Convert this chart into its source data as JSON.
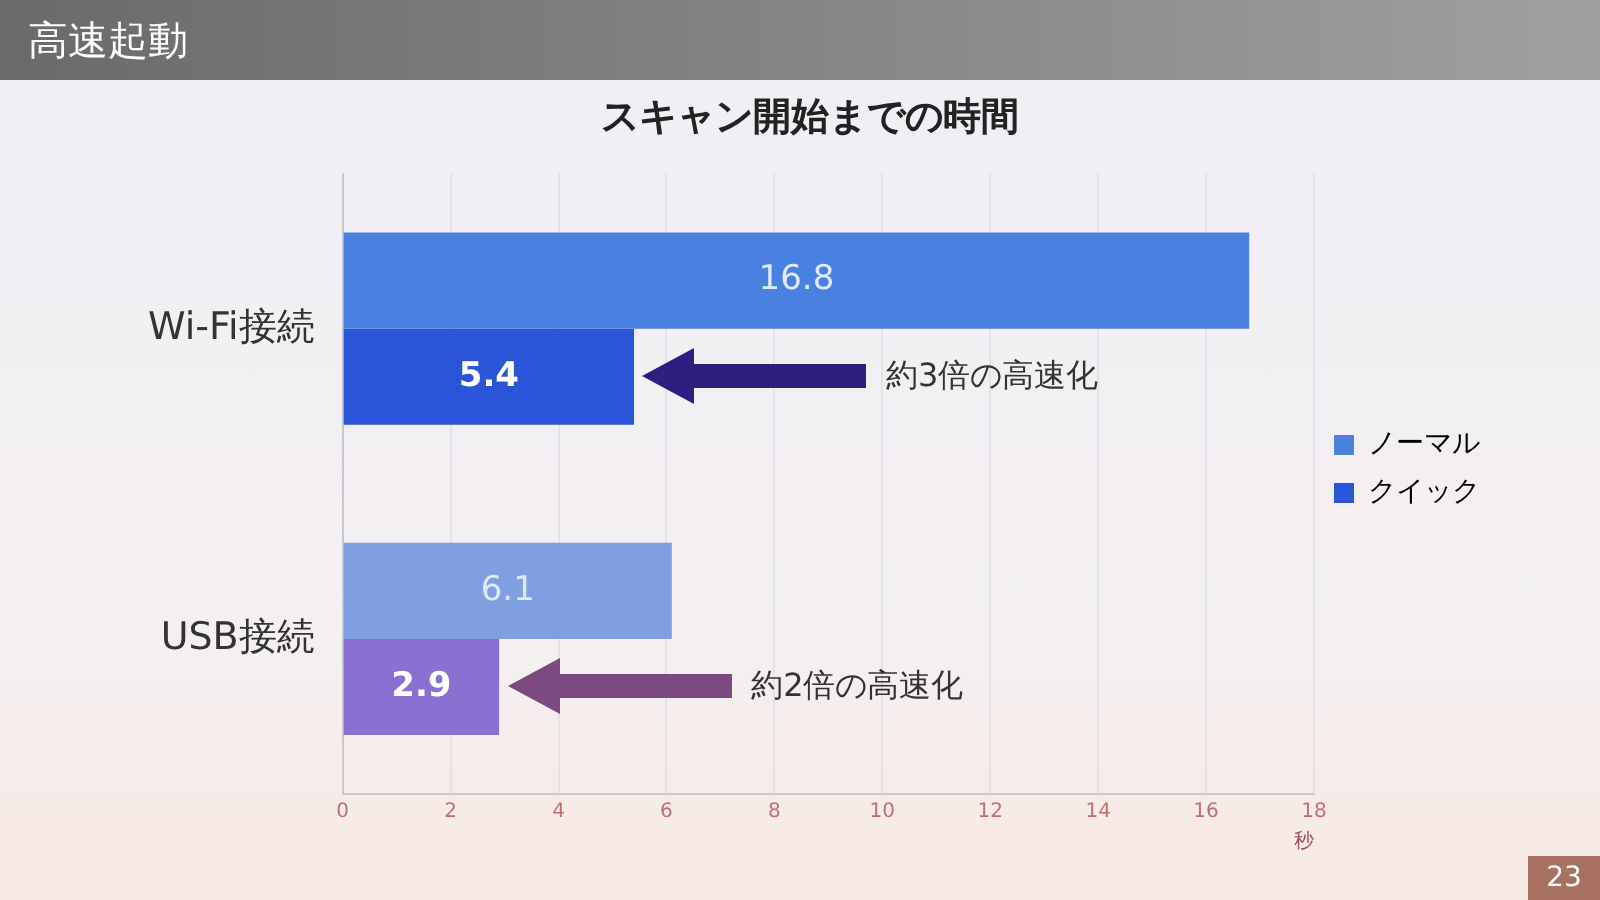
{
  "chart_data": {
    "type": "bar",
    "orientation": "horizontal",
    "title": "スキャン開始までの時間",
    "xlabel": "秒",
    "categories": [
      "Wi-Fi接続",
      "USB接続"
    ],
    "series": [
      {
        "name": "ノーマル",
        "color": "#4a80e0",
        "colors": [
          "#4a80e0",
          "#7f9fe0"
        ],
        "values": [
          16.8,
          6.1
        ]
      },
      {
        "name": "クイック",
        "color": "#2a55d8",
        "colors": [
          "#2a55d8",
          "#8a70d0"
        ],
        "values": [
          5.4,
          2.9
        ]
      }
    ],
    "xlim": [
      0,
      18
    ],
    "xticks": [
      0,
      2,
      4,
      6,
      8,
      10,
      12,
      14,
      16,
      18
    ],
    "grid": "x",
    "legend": "right",
    "data_labels": true,
    "annotations": [
      "高速起動",
      "23",
      "約3倍の高速化",
      "約2倍の高速化"
    ]
  }
}
